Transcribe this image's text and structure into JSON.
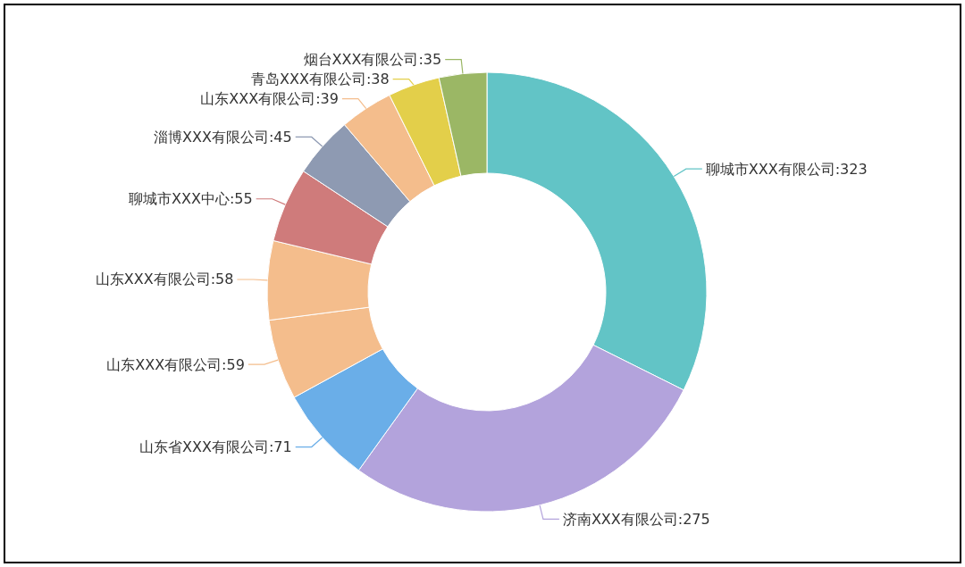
{
  "chart_data": {
    "type": "donut",
    "categories": [
      "聊城市XXX有限公司",
      "济南XXX有限公司",
      "山东省XXX有限公司",
      "山东XXX有限公司",
      "山东XXX有限公司",
      "聊城市XXX中心",
      "淄博XXX有限公司",
      "山东XXX有限公司",
      "青岛XXX有限公司",
      "烟台XXX有限公司"
    ],
    "values": [
      323,
      275,
      71,
      59,
      58,
      55,
      45,
      39,
      38,
      35
    ],
    "colors": [
      "#62c4c6",
      "#b3a3dc",
      "#6aaee8",
      "#f4bd8c",
      "#f4bd8c",
      "#cf7b7b",
      "#8e9ab2",
      "#f4bd8c",
      "#e3cf4a",
      "#9bb765"
    ],
    "value_labels": [
      ":323",
      ":275",
      ":71",
      ":59",
      ":58",
      ":55",
      ":45",
      ":39",
      ":38",
      ":35"
    ]
  }
}
